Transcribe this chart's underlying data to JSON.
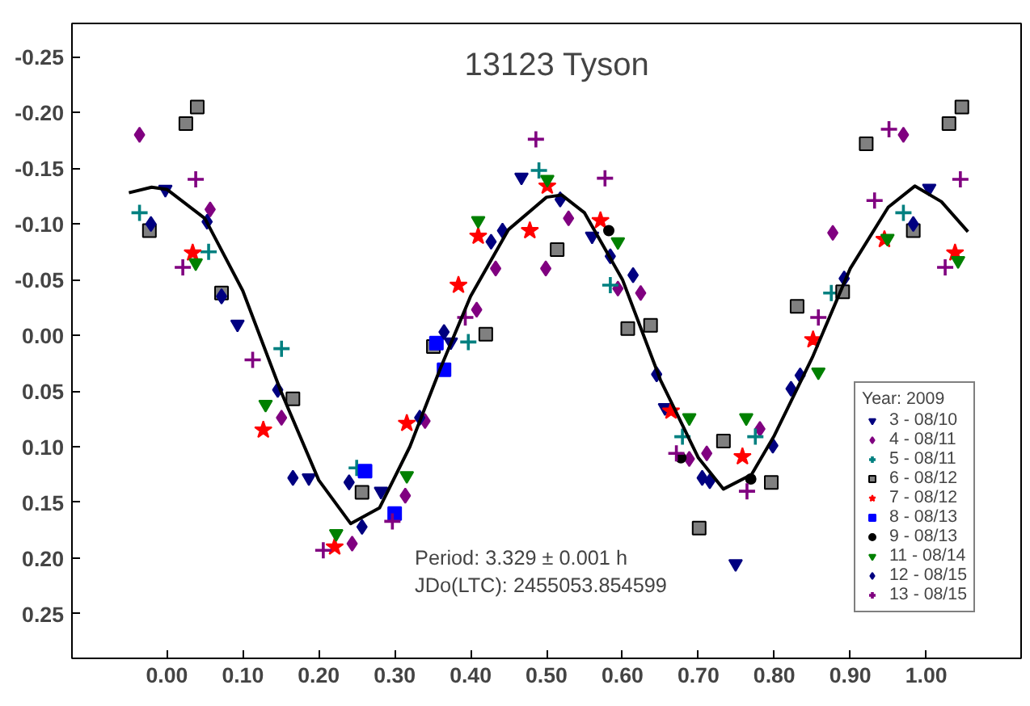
{
  "chart_data": {
    "type": "scatter",
    "title": "13123 Tyson",
    "legend_title": "Year: 2009",
    "legend": "bottom right",
    "grid": false,
    "xlim": [
      -0.125,
      1.125
    ],
    "ylim": [
      0.29,
      -0.28
    ],
    "xticks": [
      {
        "value": 0,
        "label": "0.00"
      },
      {
        "value": 0.1,
        "label": "0.10"
      },
      {
        "value": 0.2,
        "label": "0.20"
      },
      {
        "value": 0.3,
        "label": "0.30"
      },
      {
        "value": 0.4,
        "label": "0.40"
      },
      {
        "value": 0.5,
        "label": "0.50"
      },
      {
        "value": 0.6,
        "label": "0.60"
      },
      {
        "value": 0.7,
        "label": "0.70"
      },
      {
        "value": 0.8,
        "label": "0.80"
      },
      {
        "value": 0.9,
        "label": "0.90"
      },
      {
        "value": 1.0,
        "label": "1.00"
      }
    ],
    "yticks": [
      {
        "value": -0.25,
        "label": "-0.25"
      },
      {
        "value": -0.2,
        "label": "-0.20"
      },
      {
        "value": -0.15,
        "label": "-0.15"
      },
      {
        "value": -0.1,
        "label": "-0.10"
      },
      {
        "value": -0.05,
        "label": "-0.05"
      },
      {
        "value": 0,
        "label": "0.00"
      },
      {
        "value": 0.05,
        "label": "0.05"
      },
      {
        "value": 0.1,
        "label": "0.10"
      },
      {
        "value": 0.15,
        "label": "0.15"
      },
      {
        "value": 0.2,
        "label": "0.20"
      },
      {
        "value": 0.25,
        "label": "0.25"
      }
    ],
    "annotations": [
      "Period: 3.329 ± 0.001 h",
      "JDo(LTC): 2455053.854599"
    ],
    "series": [
      {
        "name": "3 - 08/10",
        "marker": "triangle",
        "color": "#000080",
        "x": [
          -0.002,
          0.093,
          0.187,
          0.282,
          0.374,
          0.467,
          0.56,
          0.656,
          0.749,
          1.004
        ],
        "values": [
          -0.131,
          -0.01,
          0.128,
          0.14,
          0.006,
          -0.142,
          -0.089,
          0.065,
          0.205,
          -0.132
        ]
      },
      {
        "name": "4 - 08/11",
        "marker": "diamond",
        "color": "#800080",
        "x": [
          -0.036,
          0.057,
          0.151,
          0.244,
          0.314,
          0.34,
          0.408,
          0.433,
          0.499,
          0.529,
          0.594,
          0.624,
          0.688,
          0.711,
          0.781,
          0.877,
          0.97
        ],
        "values": [
          -0.18,
          -0.113,
          0.074,
          0.187,
          0.144,
          0.077,
          -0.023,
          -0.06,
          -0.06,
          -0.105,
          -0.042,
          -0.038,
          0.111,
          0.106,
          0.084,
          -0.092,
          -0.18
        ]
      },
      {
        "name": "5 - 08/11",
        "marker": "cross",
        "color": "#008080",
        "x": [
          -0.036,
          0.055,
          0.151,
          0.25,
          0.397,
          0.49,
          0.584,
          0.679,
          0.775,
          0.875,
          0.97
        ],
        "values": [
          -0.11,
          -0.075,
          0.012,
          0.119,
          0.006,
          -0.148,
          -0.045,
          0.091,
          0.091,
          -0.038,
          -0.11
        ]
      },
      {
        "name": "6 - 08/12",
        "marker": "square",
        "color": "#808080",
        "x": [
          -0.023,
          0.025,
          0.04,
          0.072,
          0.166,
          0.257,
          0.351,
          0.42,
          0.514,
          0.607,
          0.637,
          0.701,
          0.733,
          0.796,
          0.83,
          0.89,
          0.921,
          0.983,
          1.03,
          1.047
        ],
        "values": [
          -0.094,
          -0.19,
          -0.205,
          -0.038,
          0.057,
          0.141,
          0.01,
          -0.001,
          -0.077,
          -0.006,
          -0.009,
          0.173,
          0.095,
          0.132,
          -0.026,
          -0.039,
          -0.172,
          -0.094,
          -0.19,
          -0.205
        ]
      },
      {
        "name": "7 - 08/12",
        "marker": "star",
        "color": "#ff0000",
        "x": [
          0.034,
          0.127,
          0.221,
          0.316,
          0.384,
          0.41,
          0.478,
          0.501,
          0.571,
          0.664,
          0.758,
          0.851,
          0.945,
          1.038
        ],
        "values": [
          -0.074,
          0.085,
          0.19,
          0.079,
          -0.045,
          -0.089,
          -0.094,
          -0.134,
          -0.103,
          0.068,
          0.109,
          0.004,
          -0.086,
          -0.074
        ]
      },
      {
        "name": "8 - 08/13",
        "marker": "square",
        "color": "#0000ff",
        "x": [
          0.261,
          0.3,
          0.355,
          0.365
        ],
        "values": [
          0.122,
          0.16,
          0.007,
          0.031
        ]
      },
      {
        "name": "9 - 08/13",
        "marker": "circle",
        "color": "#000000",
        "x": [
          0.582,
          0.677,
          0.769
        ],
        "values": [
          -0.094,
          0.11,
          0.129
        ]
      },
      {
        "name": "11 - 08/14",
        "marker": "triangle",
        "color": "#008000",
        "x": [
          0.038,
          0.13,
          0.223,
          0.316,
          0.41,
          0.501,
          0.594,
          0.688,
          0.763,
          0.858,
          0.949,
          1.042
        ],
        "values": [
          -0.065,
          0.062,
          0.178,
          0.126,
          -0.103,
          -0.14,
          -0.084,
          0.074,
          0.074,
          0.033,
          -0.087,
          -0.067
        ]
      },
      {
        "name": "12 - 08/15",
        "marker": "diamond",
        "color": "#000080",
        "x": [
          -0.021,
          0.053,
          0.072,
          0.146,
          0.166,
          0.24,
          0.257,
          0.333,
          0.365,
          0.427,
          0.442,
          0.518,
          0.584,
          0.614,
          0.645,
          0.705,
          0.715,
          0.798,
          0.822,
          0.834,
          0.892,
          0.983
        ],
        "values": [
          -0.1,
          -0.102,
          -0.035,
          0.049,
          0.128,
          0.132,
          0.172,
          0.074,
          -0.003,
          -0.084,
          -0.094,
          -0.122,
          -0.071,
          -0.054,
          0.035,
          0.128,
          0.131,
          0.099,
          0.048,
          0.036,
          -0.051,
          -0.1
        ]
      },
      {
        "name": "13 - 08/15",
        "marker": "cross",
        "color": "#800080",
        "x": [
          0.021,
          0.038,
          0.113,
          0.206,
          0.297,
          0.393,
          0.486,
          0.577,
          0.671,
          0.764,
          0.858,
          0.932,
          0.951,
          1.025,
          1.045
        ],
        "values": [
          -0.061,
          -0.14,
          0.022,
          0.193,
          0.167,
          -0.016,
          -0.176,
          -0.141,
          0.106,
          0.14,
          -0.016,
          -0.121,
          -0.185,
          -0.061,
          -0.14
        ]
      },
      {
        "type": "line",
        "line_style": "solid",
        "color": "#000000",
        "x": [
          -0.05,
          -0.02,
          0.0,
          0.05,
          0.1,
          0.15,
          0.2,
          0.242,
          0.28,
          0.32,
          0.36,
          0.4,
          0.45,
          0.5,
          0.52,
          0.55,
          0.6,
          0.65,
          0.7,
          0.733,
          0.77,
          0.8,
          0.85,
          0.9,
          0.95,
          0.985,
          1.02,
          1.055
        ],
        "values": [
          -0.128,
          -0.133,
          -0.131,
          -0.105,
          -0.04,
          0.05,
          0.13,
          0.169,
          0.155,
          0.1,
          0.03,
          -0.035,
          -0.095,
          -0.124,
          -0.126,
          -0.11,
          -0.05,
          0.04,
          0.11,
          0.138,
          0.125,
          0.09,
          0.02,
          -0.06,
          -0.115,
          -0.134,
          -0.12,
          -0.093
        ]
      }
    ]
  }
}
